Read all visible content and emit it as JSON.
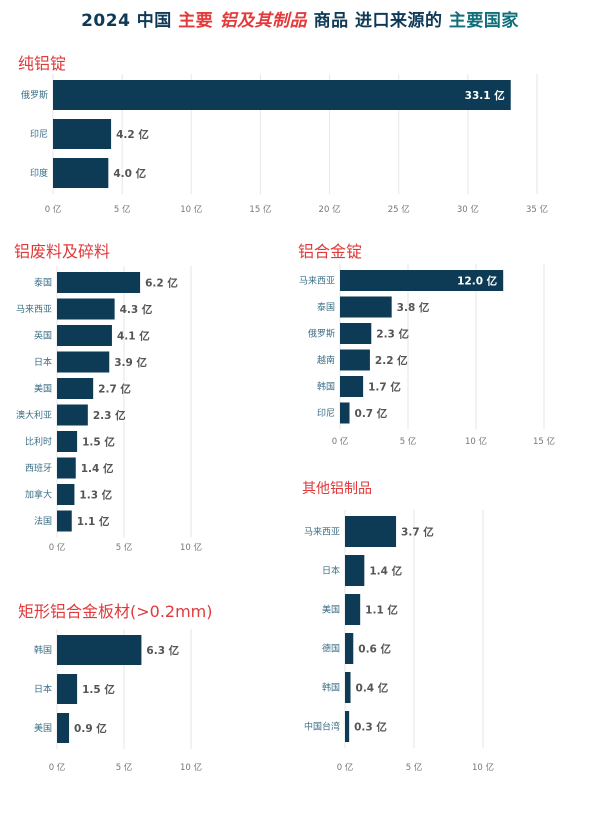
{
  "title": {
    "p1": "2024 中国 ",
    "p2": "主要 ",
    "p3": "铝及其制品",
    "p4": " 商品 进口来源的 ",
    "p5": "主要国家"
  },
  "unit": "亿",
  "colors": {
    "bar": "#0d3a55",
    "title_red": "#e03a3a",
    "label": "#3a6f86"
  },
  "chart_data": [
    {
      "type": "bar",
      "orientation": "horizontal",
      "title": "纯铝锭",
      "categories": [
        "俄罗斯",
        "印尼",
        "印度"
      ],
      "values": [
        33.1,
        4.2,
        4.0
      ],
      "value_labels": [
        "33.1 亿",
        "4.2 亿",
        "4.0 亿"
      ],
      "xlim": [
        0,
        35
      ],
      "xticks": [
        "0 亿",
        "5 亿",
        "10 亿",
        "15 亿",
        "20 亿",
        "25 亿",
        "30 亿",
        "35 亿"
      ]
    },
    {
      "type": "bar",
      "orientation": "horizontal",
      "title": "铝废料及碎料",
      "categories": [
        "泰国",
        "马来西亚",
        "英国",
        "日本",
        "美国",
        "澳大利亚",
        "比利时",
        "西班牙",
        "加拿大",
        "法国"
      ],
      "values": [
        6.2,
        4.3,
        4.1,
        3.9,
        2.7,
        2.3,
        1.5,
        1.4,
        1.3,
        1.1
      ],
      "value_labels": [
        "6.2 亿",
        "4.3 亿",
        "4.1 亿",
        "3.9 亿",
        "2.7 亿",
        "2.3 亿",
        "1.5 亿",
        "1.4 亿",
        "1.3 亿",
        "1.1 亿"
      ],
      "xlim": [
        0,
        10
      ],
      "xticks": [
        "0 亿",
        "5 亿",
        "10 亿"
      ]
    },
    {
      "type": "bar",
      "orientation": "horizontal",
      "title": "铝合金锭",
      "categories": [
        "马来西亚",
        "泰国",
        "俄罗斯",
        "越南",
        "韩国",
        "印尼"
      ],
      "values": [
        12.0,
        3.8,
        2.3,
        2.2,
        1.7,
        0.7
      ],
      "value_labels": [
        "12.0 亿",
        "3.8 亿",
        "2.3 亿",
        "2.2 亿",
        "1.7 亿",
        "0.7 亿"
      ],
      "xlim": [
        0,
        15
      ],
      "xticks": [
        "0 亿",
        "5 亿",
        "10 亿",
        "15 亿"
      ]
    },
    {
      "type": "bar",
      "orientation": "horizontal",
      "title": "其他铝制品",
      "categories": [
        "马来西亚",
        "日本",
        "美国",
        "德国",
        "韩国",
        "中国台湾"
      ],
      "values": [
        3.7,
        1.4,
        1.1,
        0.6,
        0.4,
        0.3
      ],
      "value_labels": [
        "3.7 亿",
        "1.4 亿",
        "1.1 亿",
        "0.6 亿",
        "0.4 亿",
        "0.3 亿"
      ],
      "xlim": [
        0,
        10
      ],
      "xticks": [
        "0 亿",
        "5 亿",
        "10 亿"
      ]
    },
    {
      "type": "bar",
      "orientation": "horizontal",
      "title": "矩形铝合金板材(>0.2mm)",
      "categories": [
        "韩国",
        "日本",
        "美国"
      ],
      "values": [
        6.3,
        1.5,
        0.9
      ],
      "value_labels": [
        "6.3 亿",
        "1.5 亿",
        "0.9 亿"
      ],
      "xlim": [
        0,
        10
      ],
      "xticks": [
        "0 亿",
        "5 亿",
        "10 亿"
      ]
    }
  ]
}
